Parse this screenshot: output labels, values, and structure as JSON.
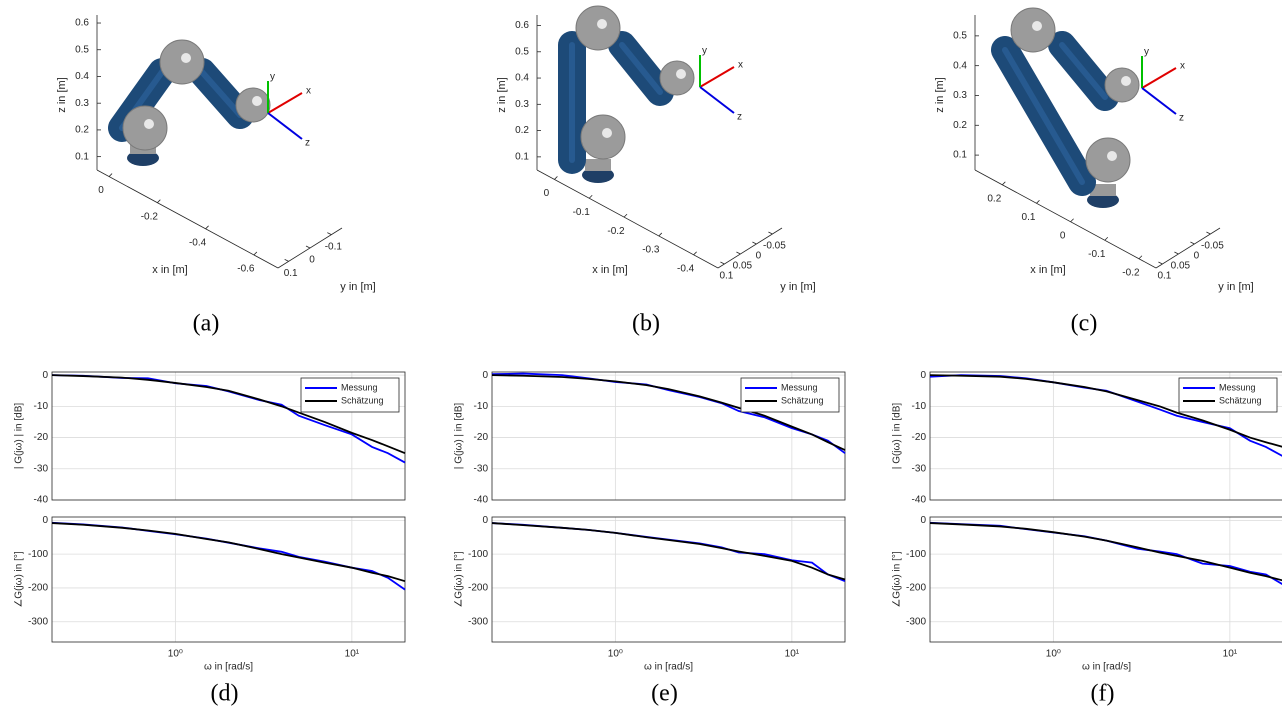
{
  "chart_data": [
    {
      "type": "robot3d",
      "caption": "(a)",
      "xlabel": "x in [m]",
      "ylabel": "y in [m]",
      "zlabel": "z in [m]",
      "xlim": [
        0.05,
        -0.7
      ],
      "xticks": [
        0,
        -0.2,
        -0.4,
        -0.6
      ],
      "ylim": [
        0.15,
        -0.15
      ],
      "yticks": [
        0.1,
        0,
        -0.1
      ],
      "zlim": [
        0.05,
        0.63
      ],
      "zticks": [
        0.1,
        0.2,
        0.3,
        0.4,
        0.5,
        0.6
      ],
      "frame_labels": [
        "x",
        "y",
        "z"
      ]
    },
    {
      "type": "robot3d",
      "caption": "(b)",
      "xlabel": "x in [m]",
      "ylabel": "y in [m]",
      "zlabel": "z in [m]",
      "xlim": [
        0.05,
        -0.47
      ],
      "xticks": [
        0,
        -0.1,
        -0.2,
        -0.3,
        -0.4
      ],
      "ylim": [
        0.12,
        -0.08
      ],
      "yticks": [
        0.1,
        0.05,
        0,
        -0.05
      ],
      "zlim": [
        0.05,
        0.64
      ],
      "zticks": [
        0.1,
        0.2,
        0.3,
        0.4,
        0.5,
        0.6
      ],
      "frame_labels": [
        "x",
        "y",
        "z"
      ]
    },
    {
      "type": "robot3d",
      "caption": "(c)",
      "xlabel": "x in [m]",
      "ylabel": "y in [m]",
      "zlabel": "z in [m]",
      "xlim": [
        0.28,
        -0.25
      ],
      "xticks": [
        0.2,
        0.1,
        0,
        -0.1,
        -0.2
      ],
      "ylim": [
        0.12,
        -0.08
      ],
      "yticks": [
        0.1,
        0.05,
        0,
        -0.05
      ],
      "zlim": [
        0.05,
        0.57
      ],
      "zticks": [
        0.1,
        0.2,
        0.3,
        0.4,
        0.5
      ],
      "frame_labels": [
        "x",
        "y",
        "z"
      ]
    },
    {
      "type": "bode",
      "caption": "(d)",
      "xlabel": "ω in [rad/s]",
      "log_x": true,
      "grid": true,
      "legend_position": "upper right",
      "x": [
        0.2,
        0.3,
        0.5,
        0.7,
        1,
        1.5,
        2,
        3,
        4,
        5,
        7,
        10,
        13,
        16,
        20
      ],
      "xlim": [
        0.2,
        20
      ],
      "xticks": [
        {
          "value": 1,
          "label": "10⁰"
        },
        {
          "value": 10,
          "label": "10¹"
        }
      ],
      "magnitude": {
        "ylabel": "| G(jω) | in [dB]",
        "ylim": [
          -40,
          1
        ],
        "yticks": [
          0,
          -10,
          -20,
          -30,
          -40
        ],
        "series": [
          {
            "name": "Messung",
            "color": "#0000ff",
            "values": [
              0,
              -0.2,
              -0.9,
              -1,
              -2.6,
              -3.5,
              -5.2,
              -8,
              -9.5,
              -13,
              -16,
              -19,
              -23,
              -25,
              -28
            ]
          },
          {
            "name": "Schätzung",
            "color": "#000000",
            "values": [
              0,
              -0.3,
              -0.8,
              -1.5,
              -2.5,
              -3.8,
              -5,
              -7.8,
              -10,
              -12,
              -15,
              -18.5,
              -20.8,
              -22.8,
              -25
            ]
          }
        ]
      },
      "phase": {
        "ylabel": "∠G(jω) in [°]",
        "ylim": [
          -360,
          10
        ],
        "yticks": [
          0,
          -100,
          -200,
          -300
        ],
        "series": [
          {
            "color": "#0000ff",
            "values": [
              -7,
              -12,
              -21,
              -31,
              -41,
              -54,
              -66,
              -83,
              -93,
              -108,
              -122,
              -140,
              -150,
              -170,
              -205
            ]
          },
          {
            "color": "#000000",
            "values": [
              -8,
              -13,
              -22,
              -30,
              -40,
              -55,
              -65,
              -85,
              -100,
              -110,
              -125,
              -140,
              -155,
              -165,
              -180
            ]
          }
        ]
      }
    },
    {
      "type": "bode",
      "caption": "(e)",
      "xlabel": "ω in [rad/s]",
      "log_x": true,
      "grid": true,
      "legend_position": "upper right",
      "x": [
        0.2,
        0.3,
        0.5,
        0.7,
        1,
        1.5,
        2,
        3,
        4,
        5,
        7,
        10,
        13,
        16,
        20
      ],
      "xlim": [
        0.2,
        20
      ],
      "xticks": [
        {
          "value": 1,
          "label": "10⁰"
        },
        {
          "value": 10,
          "label": "10¹"
        }
      ],
      "magnitude": {
        "ylabel": "| G(jω) | in [dB]",
        "ylim": [
          -40,
          1
        ],
        "yticks": [
          0,
          -10,
          -20,
          -30,
          -40
        ],
        "series": [
          {
            "name": "Messung",
            "color": "#0000ff",
            "values": [
              0.3,
              0.5,
              0,
              -1,
              -2.2,
              -3,
              -4.8,
              -7,
              -9,
              -11.5,
              -13.5,
              -17,
              -19,
              -21,
              -25
            ]
          },
          {
            "name": "Schätzung",
            "color": "#000000",
            "values": [
              0,
              -0.2,
              -0.6,
              -1.2,
              -2,
              -3.2,
              -4.5,
              -6.8,
              -8.8,
              -10.5,
              -13,
              -16.5,
              -19,
              -21.5,
              -24
            ]
          }
        ]
      },
      "phase": {
        "ylabel": "∠G(jω) in [°]",
        "ylim": [
          -360,
          10
        ],
        "yticks": [
          0,
          -100,
          -200,
          -300
        ],
        "series": [
          {
            "color": "#0000ff",
            "values": [
              -8,
              -13,
              -22,
              -28,
              -37,
              -49,
              -57,
              -68,
              -80,
              -95,
              -100,
              -118,
              -125,
              -160,
              -180
            ]
          },
          {
            "color": "#000000",
            "values": [
              -8,
              -14,
              -22,
              -28,
              -37,
              -50,
              -58,
              -70,
              -82,
              -92,
              -105,
              -120,
              -140,
              -160,
              -175
            ]
          }
        ]
      }
    },
    {
      "type": "bode",
      "caption": "(f)",
      "xlabel": "ω in [rad/s]",
      "log_x": true,
      "grid": true,
      "legend_position": "upper right",
      "x": [
        0.2,
        0.3,
        0.5,
        0.7,
        1,
        1.5,
        2,
        3,
        4,
        5,
        7,
        10,
        13,
        16,
        20
      ],
      "xlim": [
        0.2,
        20
      ],
      "xticks": [
        {
          "value": 1,
          "label": "10⁰"
        },
        {
          "value": 10,
          "label": "10¹"
        }
      ],
      "magnitude": {
        "ylabel": "| G(jω) | in [dB]",
        "ylim": [
          -40,
          1
        ],
        "yticks": [
          0,
          -10,
          -20,
          -30,
          -40
        ],
        "series": [
          {
            "name": "Messung",
            "color": "#0000ff",
            "values": [
              -0.5,
              0,
              -0.3,
              -1,
              -2.3,
              -4,
              -5,
              -8.5,
              -11,
              -13,
              -15,
              -17,
              -21,
              -23,
              -26
            ]
          },
          {
            "name": "Schätzung",
            "color": "#000000",
            "values": [
              0,
              -0.2,
              -0.5,
              -1.2,
              -2.3,
              -3.8,
              -5.2,
              -8,
              -10,
              -12,
              -14.5,
              -17.5,
              -20,
              -21.5,
              -23
            ]
          }
        ]
      },
      "phase": {
        "ylabel": "∠G(jω) in [°]",
        "ylim": [
          -360,
          10
        ],
        "yticks": [
          0,
          -100,
          -200,
          -300
        ],
        "series": [
          {
            "color": "#0000ff",
            "values": [
              -7,
              -11,
              -16,
              -26,
              -36,
              -47,
              -60,
              -84,
              -92,
              -100,
              -128,
              -135,
              -152,
              -160,
              -190
            ]
          },
          {
            "color": "#000000",
            "values": [
              -8,
              -12,
              -18,
              -25,
              -35,
              -48,
              -60,
              -80,
              -95,
              -105,
              -120,
              -140,
              -155,
              -165,
              -178
            ]
          }
        ]
      }
    }
  ]
}
